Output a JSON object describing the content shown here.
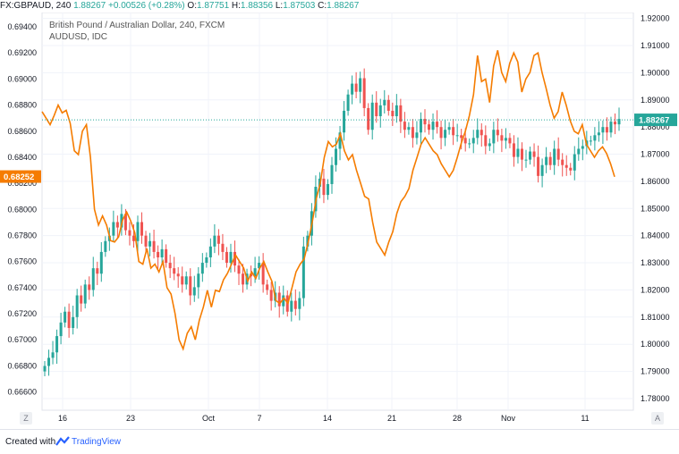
{
  "header": {
    "symbol": "FX:GBPAUD, 240",
    "price": "1.88267",
    "change": "+0.00526 (+0.28%)",
    "open_key": "O:",
    "open": "1.87751",
    "high_key": "H:",
    "high": "1.88356",
    "low_key": "L:",
    "low": "1.87503",
    "close_key": "C:",
    "close": "1.88267"
  },
  "legend": {
    "title": "British Pound / Australian Dollar, 240, FXCM",
    "overlay": "AUDUSD, IDC"
  },
  "axis_buttons": {
    "left": "Z",
    "right": "A"
  },
  "footer": {
    "created_with": "Created with",
    "brand": "TradingView"
  },
  "colors": {
    "up": "#26a69a",
    "down": "#ef5350",
    "overlay": "#f57c00",
    "grid": "#f0f3fa",
    "axis_text": "#131722",
    "price_line": "#26a69a"
  },
  "chart_data": {
    "type": "line",
    "x_tick_labels": [
      "16",
      "23",
      "Oct",
      "7",
      "14",
      "21",
      "28",
      "Nov",
      "11"
    ],
    "right_axis": {
      "label": "GBPAUD",
      "ticks": [
        "1.92000",
        "1.91000",
        "1.90000",
        "1.89000",
        "1.88000",
        "1.87000",
        "1.86000",
        "1.85000",
        "1.84000",
        "1.83000",
        "1.82000",
        "1.81000",
        "1.80000",
        "1.79000",
        "1.78000"
      ],
      "ylim": [
        1.7757,
        1.9222
      ],
      "last_value_label": "1.88267",
      "last_value": 1.88267
    },
    "left_axis": {
      "label": "AUDUSD",
      "ticks": [
        "0.69400",
        "0.69200",
        "0.69000",
        "0.68800",
        "0.68600",
        "0.68400",
        "0.68200",
        "0.68000",
        "0.67800",
        "0.67600",
        "0.67400",
        "0.67200",
        "0.67000",
        "0.66800",
        "0.66600"
      ],
      "ylim": [
        0.6646,
        0.6951
      ],
      "last_value_label": "0.68252",
      "last_value": 0.68252
    },
    "series": [
      {
        "name": "GBPAUD",
        "kind": "candlestick",
        "values": [
          1.792,
          1.795,
          1.797,
          1.803,
          1.808,
          1.812,
          1.806,
          1.81,
          1.818,
          1.815,
          1.822,
          1.82,
          1.828,
          1.826,
          1.834,
          1.838,
          1.84,
          1.845,
          1.843,
          1.848,
          1.842,
          1.84,
          1.838,
          1.845,
          1.84,
          1.836,
          1.838,
          1.834,
          1.832,
          1.835,
          1.83,
          1.828,
          1.826,
          1.825,
          1.822,
          1.825,
          1.818,
          1.821,
          1.826,
          1.83,
          1.832,
          1.836,
          1.84,
          1.837,
          1.834,
          1.83,
          1.834,
          1.829,
          1.826,
          1.822,
          1.826,
          1.825,
          1.828,
          1.83,
          1.822,
          1.82,
          1.816,
          1.819,
          1.814,
          1.818,
          1.812,
          1.816,
          1.813,
          1.817,
          1.836,
          1.84,
          1.849,
          1.858,
          1.861,
          1.855,
          1.859,
          1.866,
          1.872,
          1.878,
          1.886,
          1.892,
          1.896,
          1.893,
          1.898,
          1.887,
          1.879,
          1.889,
          1.884,
          1.888,
          1.89,
          1.886,
          1.884,
          1.888,
          1.882,
          1.879,
          1.88,
          1.876,
          1.878,
          1.883,
          1.881,
          1.879,
          1.882,
          1.88,
          1.876,
          1.879,
          1.88,
          1.877,
          1.877,
          1.876,
          1.874,
          1.874,
          1.876,
          1.879,
          1.877,
          1.873,
          1.874,
          1.879,
          1.877,
          1.875,
          1.876,
          1.874,
          1.869,
          1.872,
          1.868,
          1.868,
          1.871,
          1.869,
          1.862,
          1.866,
          1.869,
          1.866,
          1.872,
          1.868,
          1.866,
          1.865,
          1.864,
          1.87,
          1.872,
          1.873,
          1.875,
          1.875,
          1.877,
          1.878,
          1.88,
          1.878,
          1.882,
          1.881,
          1.883
        ]
      },
      {
        "name": "AUDUSD",
        "kind": "line",
        "values": [
          0.6875,
          0.687,
          0.6865,
          0.6872,
          0.688,
          0.6874,
          0.6876,
          0.6866,
          0.6845,
          0.6842,
          0.686,
          0.6865,
          0.684,
          0.68,
          0.6788,
          0.6795,
          0.6788,
          0.6776,
          0.6775,
          0.6779,
          0.6792,
          0.6798,
          0.6791,
          0.6782,
          0.676,
          0.6758,
          0.677,
          0.6755,
          0.6758,
          0.6752,
          0.676,
          0.674,
          0.6735,
          0.672,
          0.67,
          0.6693,
          0.6705,
          0.671,
          0.67,
          0.6715,
          0.6725,
          0.6738,
          0.6725,
          0.6738,
          0.6737,
          0.6746,
          0.6751,
          0.6758,
          0.6765,
          0.676,
          0.6755,
          0.6745,
          0.6752,
          0.6747,
          0.6755,
          0.676,
          0.6752,
          0.6745,
          0.673,
          0.6728,
          0.6732,
          0.6728,
          0.674,
          0.6752,
          0.6758,
          0.6762,
          0.6775,
          0.679,
          0.6808,
          0.682,
          0.684,
          0.6852,
          0.6848,
          0.685,
          0.6858,
          0.6845,
          0.6838,
          0.6842,
          0.683,
          0.682,
          0.681,
          0.6808,
          0.679,
          0.6775,
          0.677,
          0.6765,
          0.6775,
          0.6783,
          0.6797,
          0.6806,
          0.681,
          0.6816,
          0.683,
          0.684,
          0.685,
          0.6855,
          0.685,
          0.6845,
          0.6842,
          0.6835,
          0.683,
          0.6825,
          0.683,
          0.684,
          0.6851,
          0.686,
          0.6872,
          0.6888,
          0.6918,
          0.6898,
          0.69,
          0.6882,
          0.691,
          0.6922,
          0.6905,
          0.6898,
          0.6912,
          0.692,
          0.6913,
          0.689,
          0.69,
          0.6905,
          0.6918,
          0.692,
          0.6905,
          0.6893,
          0.688,
          0.687,
          0.6875,
          0.689,
          0.688,
          0.6868,
          0.686,
          0.6858,
          0.6865,
          0.685,
          0.6845,
          0.684,
          0.6845,
          0.6848,
          0.6843,
          0.6835,
          0.6825
        ]
      }
    ],
    "annotations": [
      "1.88267",
      "0.68252"
    ],
    "grid": true
  }
}
